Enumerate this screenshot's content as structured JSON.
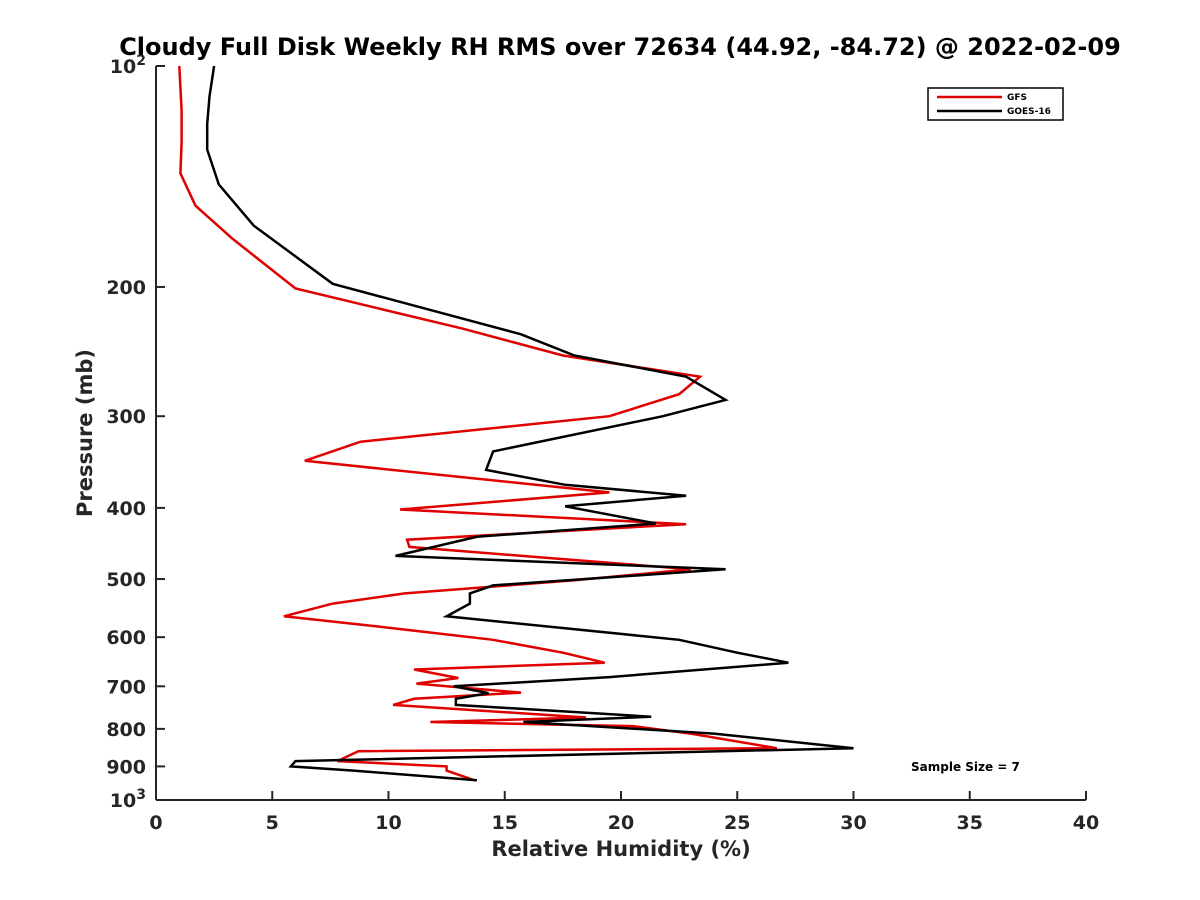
{
  "chart_data": {
    "type": "line",
    "title": "Cloudy Full Disk Weekly RH RMS over 72634 (44.92, -84.72) @ 2022-02-09",
    "xlabel": "Relative Humidity (%)",
    "ylabel": "Pressure (mb)",
    "xlim": [
      0,
      40
    ],
    "ylim": [
      100,
      1000
    ],
    "yscale": "log",
    "yreversed": true,
    "grid": false,
    "x_ticks": [
      "0",
      "5",
      "10",
      "15",
      "20",
      "25",
      "30",
      "35",
      "40"
    ],
    "y_ticks": [
      {
        "value": 100,
        "label": "10",
        "sup": "2"
      },
      {
        "value": 200,
        "label": "200",
        "sup": ""
      },
      {
        "value": 300,
        "label": "300",
        "sup": ""
      },
      {
        "value": 400,
        "label": "400",
        "sup": ""
      },
      {
        "value": 500,
        "label": "500",
        "sup": ""
      },
      {
        "value": 600,
        "label": "600",
        "sup": ""
      },
      {
        "value": 700,
        "label": "700",
        "sup": ""
      },
      {
        "value": 800,
        "label": "800",
        "sup": ""
      },
      {
        "value": 900,
        "label": "900",
        "sup": ""
      },
      {
        "value": 1000,
        "label": "10",
        "sup": "3"
      }
    ],
    "legend_position": "top-right",
    "annotation": "Sample Size = 7",
    "series": [
      {
        "name": "GFS",
        "color": "#e00000",
        "points": [
          [
            1.0,
            100
          ],
          [
            1.1,
            115
          ],
          [
            1.1,
            127
          ],
          [
            1.05,
            140
          ],
          [
            1.7,
            155
          ],
          [
            3.3,
            172
          ],
          [
            6.0,
            201
          ],
          [
            13.2,
            228
          ],
          [
            17.5,
            248
          ],
          [
            23.4,
            265
          ],
          [
            22.5,
            280
          ],
          [
            19.5,
            300
          ],
          [
            8.8,
            325
          ],
          [
            6.4,
            345
          ],
          [
            19.5,
            381
          ],
          [
            10.5,
            402
          ],
          [
            22.8,
            421
          ],
          [
            10.8,
            442
          ],
          [
            10.9,
            452
          ],
          [
            23.0,
            485
          ],
          [
            18.0,
            502
          ],
          [
            10.7,
            523
          ],
          [
            7.6,
            540
          ],
          [
            5.5,
            562
          ],
          [
            9.5,
            580
          ],
          [
            14.5,
            605
          ],
          [
            17.5,
            630
          ],
          [
            19.3,
            650
          ],
          [
            11.1,
            664
          ],
          [
            13.0,
            682
          ],
          [
            11.2,
            694
          ],
          [
            15.7,
            714
          ],
          [
            11.1,
            728
          ],
          [
            10.2,
            742
          ],
          [
            18.5,
            772
          ],
          [
            11.8,
            783
          ],
          [
            20.5,
            793
          ],
          [
            23.0,
            812
          ],
          [
            26.7,
            850
          ],
          [
            8.7,
            858
          ],
          [
            7.8,
            885
          ],
          [
            12.5,
            900
          ],
          [
            12.5,
            912
          ],
          [
            13.7,
            940
          ]
        ]
      },
      {
        "name": "GOES-16",
        "color": "#000000",
        "points": [
          [
            2.5,
            100
          ],
          [
            2.3,
            110
          ],
          [
            2.2,
            120
          ],
          [
            2.2,
            130
          ],
          [
            2.7,
            145
          ],
          [
            4.2,
            165
          ],
          [
            7.6,
            198
          ],
          [
            15.7,
            232
          ],
          [
            18.0,
            248
          ],
          [
            22.8,
            265
          ],
          [
            24.5,
            285
          ],
          [
            21.8,
            300
          ],
          [
            14.5,
            335
          ],
          [
            14.2,
            355
          ],
          [
            17.6,
            372
          ],
          [
            22.8,
            385
          ],
          [
            17.6,
            398
          ],
          [
            21.5,
            420
          ],
          [
            13.8,
            438
          ],
          [
            10.3,
            465
          ],
          [
            24.5,
            485
          ],
          [
            14.5,
            510
          ],
          [
            13.5,
            523
          ],
          [
            13.5,
            540
          ],
          [
            12.5,
            562
          ],
          [
            22.5,
            605
          ],
          [
            25.0,
            630
          ],
          [
            27.2,
            650
          ],
          [
            19.5,
            680
          ],
          [
            12.8,
            700
          ],
          [
            14.3,
            715
          ],
          [
            12.9,
            728
          ],
          [
            12.9,
            742
          ],
          [
            21.3,
            770
          ],
          [
            15.8,
            783
          ],
          [
            24.0,
            812
          ],
          [
            30.0,
            850
          ],
          [
            6.0,
            885
          ],
          [
            5.8,
            900
          ],
          [
            8.5,
            912
          ],
          [
            13.8,
            940
          ]
        ]
      }
    ]
  }
}
